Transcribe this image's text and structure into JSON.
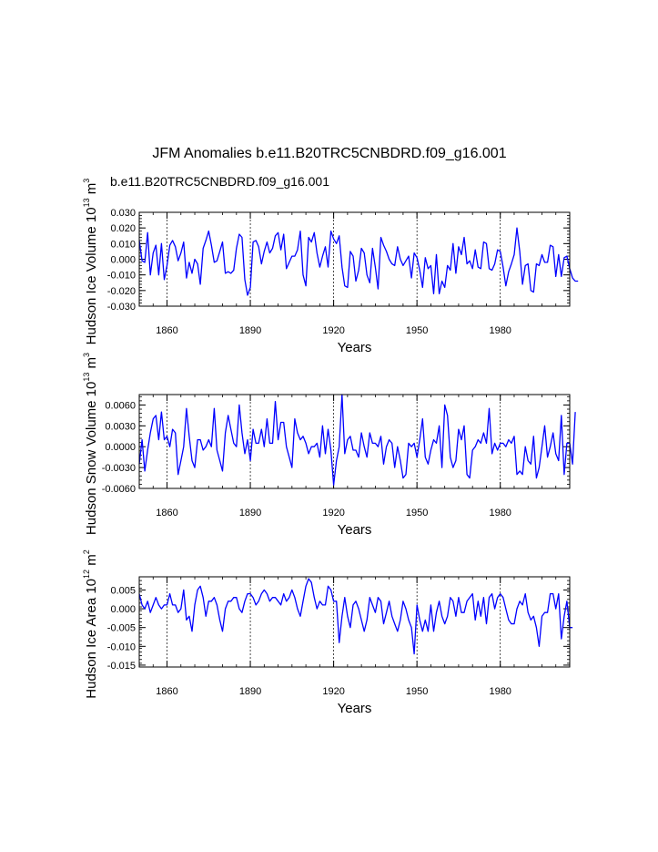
{
  "title": "JFM Anomalies b.e11.B20TRC5CNBDRD.f09_g16.001",
  "case_label": "b.e11.B20TRC5CNBDRD.f09_g16.001",
  "colors": {
    "series": "#0000ff",
    "case_label": "#0000ff",
    "axis": "#000000",
    "grid": "#000000"
  },
  "chart_data": [
    {
      "type": "line",
      "panel": "ice-volume",
      "ylabel": "Hudson Ice Volume",
      "yunits_base": "10",
      "yunits_exp": "13",
      "yunits_unit": "m",
      "yunits_unit_exp": "3",
      "xlabel": "Years",
      "xlim": [
        1850,
        2005
      ],
      "ylim": [
        -0.03,
        0.03
      ],
      "xticks": [
        1860,
        1890,
        1920,
        1950,
        1980
      ],
      "xtick_labels": [
        "1860",
        "1890",
        "1920",
        "1950",
        "1980"
      ],
      "yticks": [
        -0.03,
        -0.02,
        -0.01,
        0.0,
        0.01,
        0.02,
        0.03
      ],
      "ytick_labels": [
        "-0.030",
        "-0.020",
        "-0.010",
        "0.000",
        "0.010",
        "0.020",
        "0.030"
      ],
      "grid_x": [
        1860,
        1890,
        1920,
        1950,
        1980
      ],
      "series": [
        {
          "name": "Hudson Ice Volume",
          "x_start": 1850,
          "values": [
            0.012,
            -0.001,
            -0.002,
            0.017,
            -0.01,
            0.004,
            0.009,
            -0.01,
            0.01,
            -0.013,
            -0.004,
            0.009,
            0.012,
            0.008,
            -0.001,
            0.004,
            0.011,
            -0.012,
            -0.002,
            -0.009,
            0.0,
            -0.003,
            -0.016,
            0.007,
            0.012,
            0.018,
            0.009,
            -0.002,
            -0.001,
            0.005,
            0.011,
            -0.009,
            -0.008,
            -0.009,
            -0.007,
            0.007,
            0.016,
            0.014,
            -0.013,
            -0.023,
            -0.018,
            0.011,
            0.012,
            0.008,
            -0.003,
            0.005,
            0.011,
            0.004,
            0.007,
            0.015,
            0.017,
            0.006,
            0.016,
            -0.006,
            -0.002,
            0.002,
            0.002,
            0.006,
            0.018,
            -0.01,
            -0.017,
            0.014,
            0.011,
            0.017,
            0.004,
            -0.005,
            0.002,
            0.008,
            -0.005,
            0.018,
            0.013,
            0.01,
            0.015,
            -0.005,
            -0.017,
            -0.018,
            0.005,
            0.002,
            -0.014,
            -0.007,
            0.007,
            0.004,
            -0.01,
            -0.015,
            0.007,
            -0.005,
            -0.019,
            0.014,
            0.009,
            0.005,
            0.0,
            -0.003,
            -0.004,
            0.008,
            0.0,
            -0.004,
            -0.001,
            0.002,
            -0.012,
            0.004,
            0.001,
            -0.007,
            -0.018,
            0.001,
            -0.006,
            -0.004,
            -0.022,
            0.003,
            -0.022,
            -0.014,
            -0.018,
            -0.004,
            -0.007,
            0.01,
            -0.009,
            0.008,
            0.003,
            0.014,
            -0.003,
            -0.001,
            -0.006,
            0.006,
            -0.005,
            -0.006,
            0.011,
            0.01,
            -0.006,
            -0.007,
            -0.003,
            0.006,
            0.005,
            -0.005,
            -0.017,
            -0.008,
            -0.003,
            0.003,
            0.02,
            0.005,
            -0.016,
            -0.004,
            -0.003,
            -0.02,
            -0.021,
            -0.003,
            -0.004,
            0.003,
            -0.002,
            -0.002,
            0.009,
            0.008,
            -0.011,
            0.003,
            -0.011,
            0.001,
            0.002,
            -0.006,
            -0.012,
            -0.014,
            -0.014
          ]
        }
      ]
    },
    {
      "type": "line",
      "panel": "snow-volume",
      "ylabel": "Hudson Snow Volume",
      "yunits_base": "10",
      "yunits_exp": "13",
      "yunits_unit": "m",
      "yunits_unit_exp": "3",
      "xlabel": "Years",
      "xlim": [
        1850,
        2005
      ],
      "ylim": [
        -0.006,
        0.0075
      ],
      "xticks": [
        1860,
        1890,
        1920,
        1950,
        1980
      ],
      "xtick_labels": [
        "1860",
        "1890",
        "1920",
        "1950",
        "1980"
      ],
      "yticks": [
        -0.006,
        -0.003,
        0.0,
        0.003,
        0.006
      ],
      "ytick_labels": [
        "-0.0060",
        "-0.0030",
        "0.0000",
        "0.0030",
        "0.0060"
      ],
      "grid_x": [
        1860,
        1890,
        1920,
        1950,
        1980
      ],
      "series": [
        {
          "name": "Hudson Snow Volume",
          "x_start": 1850,
          "values": [
            -0.0025,
            0.001,
            -0.0035,
            -0.0005,
            0.002,
            0.004,
            0.0045,
            0.001,
            0.005,
            0.001,
            0.0015,
            0.0,
            0.0025,
            0.002,
            -0.004,
            -0.002,
            0.0,
            0.0055,
            0.0015,
            -0.002,
            -0.003,
            0.001,
            0.001,
            -0.0005,
            0.0,
            0.001,
            0.0,
            0.0055,
            -0.0005,
            -0.002,
            -0.0035,
            0.002,
            0.0045,
            0.0025,
            0.0005,
            0.0,
            0.006,
            0.002,
            -0.001,
            0.001,
            -0.002,
            0.0025,
            0.0005,
            0.0005,
            0.0025,
            0.0,
            0.004,
            0.0005,
            0.0005,
            0.0065,
            0.001,
            0.0035,
            0.0035,
            0.0,
            -0.0015,
            -0.003,
            0.004,
            0.002,
            0.001,
            0.0015,
            0.0005,
            -0.001,
            0.0,
            0.0,
            0.0005,
            -0.0015,
            0.003,
            -0.001,
            0.0025,
            -0.0005,
            -0.0055,
            -0.002,
            0.0,
            0.0075,
            -0.001,
            0.001,
            0.0015,
            -0.0005,
            -0.0005,
            -0.0015,
            0.002,
            0.0,
            -0.0015,
            0.002,
            0.0005,
            0.0005,
            0.0,
            0.0015,
            -0.0025,
            0.0,
            0.001,
            0.0005,
            -0.003,
            0.0,
            -0.002,
            -0.0045,
            -0.004,
            0.0005,
            0.0,
            0.0005,
            -0.0015,
            0.001,
            0.004,
            -0.0015,
            -0.0025,
            -0.0005,
            0.001,
            0.0005,
            0.003,
            -0.003,
            0.006,
            0.0045,
            -0.0015,
            -0.003,
            -0.002,
            0.0025,
            0.001,
            0.003,
            -0.004,
            -0.0045,
            -0.0005,
            0.0,
            0.001,
            0.0005,
            0.002,
            0.0005,
            0.0055,
            -0.001,
            0.0005,
            -0.0005,
            0.0005,
            0.0005,
            0.0,
            0.001,
            0.0005,
            0.0015,
            -0.004,
            -0.0035,
            -0.004,
            0.0,
            -0.002,
            -0.0025,
            0.0015,
            -0.0045,
            -0.003,
            0.0,
            0.003,
            -0.0015,
            0.0,
            0.002,
            -0.001,
            -0.002,
            0.0045,
            -0.004,
            0.0005,
            0.0005,
            -0.0025,
            0.005
          ]
        }
      ]
    },
    {
      "type": "line",
      "panel": "ice-area",
      "ylabel": "Hudson Ice Area",
      "yunits_base": "10",
      "yunits_exp": "12",
      "yunits_unit": "m",
      "yunits_unit_exp": "2",
      "xlabel": "Years",
      "xlim": [
        1850,
        2005
      ],
      "ylim": [
        -0.0155,
        0.0085
      ],
      "xticks": [
        1860,
        1890,
        1920,
        1950,
        1980
      ],
      "xtick_labels": [
        "1860",
        "1890",
        "1920",
        "1950",
        "1980"
      ],
      "yticks": [
        -0.015,
        -0.01,
        -0.005,
        0.0,
        0.005
      ],
      "ytick_labels": [
        "-0.015",
        "-0.010",
        "-0.005",
        "0.000",
        "0.005"
      ],
      "grid_x": [
        1860,
        1890,
        1920,
        1950,
        1980
      ],
      "series": [
        {
          "name": "Hudson Ice Area",
          "x_start": 1850,
          "values": [
            0.004,
            0.001,
            0.0,
            0.002,
            -0.001,
            0.001,
            0.003,
            0.001,
            0.0,
            0.001,
            0.001,
            0.004,
            0.001,
            0.001,
            -0.001,
            0.0,
            0.005,
            -0.003,
            -0.002,
            -0.006,
            0.001,
            0.005,
            0.006,
            0.003,
            -0.002,
            0.002,
            0.002,
            0.003,
            0.001,
            -0.003,
            -0.006,
            0.0,
            0.002,
            0.002,
            0.003,
            0.003,
            0.0,
            -0.001,
            0.002,
            0.004,
            0.004,
            0.003,
            0.001,
            0.002,
            0.004,
            0.005,
            0.004,
            0.002,
            0.003,
            0.003,
            0.002,
            0.001,
            0.004,
            0.002,
            0.003,
            0.005,
            0.003,
            0.0,
            -0.002,
            0.002,
            0.006,
            0.008,
            0.007,
            0.003,
            0.0,
            0.002,
            0.001,
            0.001,
            0.006,
            0.005,
            0.002,
            0.002,
            -0.009,
            -0.002,
            0.003,
            -0.002,
            -0.005,
            0.001,
            0.002,
            0.0,
            -0.003,
            -0.006,
            -0.003,
            0.003,
            0.001,
            -0.001,
            0.003,
            0.002,
            -0.004,
            -0.001,
            0.002,
            -0.002,
            -0.004,
            -0.006,
            -0.003,
            0.002,
            0.0,
            -0.003,
            -0.005,
            -0.012,
            0.001,
            -0.003,
            -0.006,
            -0.003,
            -0.006,
            0.001,
            -0.006,
            -0.001,
            0.002,
            -0.002,
            -0.004,
            -0.002,
            0.003,
            0.002,
            -0.002,
            0.003,
            -0.001,
            -0.001,
            0.002,
            0.003,
            0.004,
            -0.003,
            0.002,
            -0.002,
            0.003,
            -0.004,
            0.003,
            0.004,
            0.0,
            0.003,
            0.004,
            0.003,
            0.0,
            -0.003,
            -0.004,
            -0.004,
            0.0,
            0.002,
            0.001,
            0.004,
            -0.001,
            -0.003,
            -0.002,
            -0.005,
            -0.01,
            -0.002,
            -0.001,
            -0.001,
            0.004,
            0.004,
            0.0,
            0.004,
            -0.008,
            -0.002,
            0.002,
            -0.005,
            -0.005
          ]
        }
      ]
    }
  ]
}
